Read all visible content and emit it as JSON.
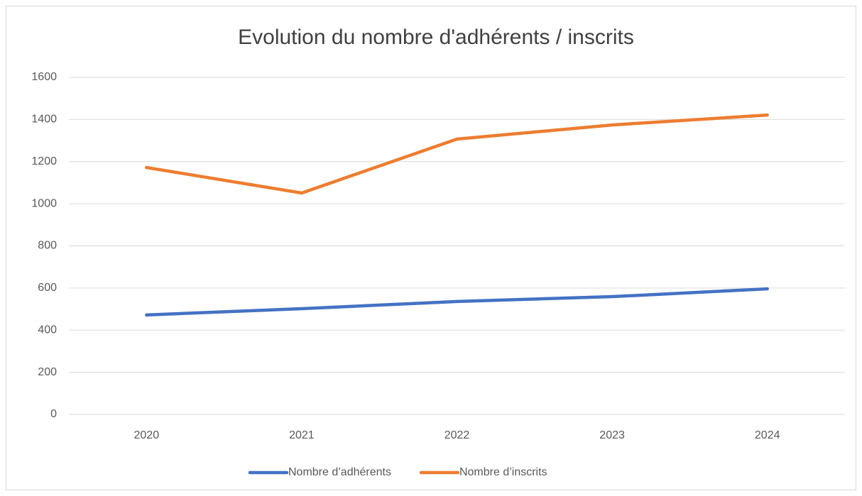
{
  "chart_data": {
    "type": "line",
    "title": "Evolution du nombre d'adhérents / inscrits",
    "categories": [
      "2020",
      "2021",
      "2022",
      "2023",
      "2024"
    ],
    "series": [
      {
        "name": "Nombre d’adhérents",
        "color": "#4472c4",
        "values": [
          472,
          502,
          536,
          559,
          596
        ]
      },
      {
        "name": "Nombre d’inscrits",
        "color": "#ed7d31",
        "values": [
          1172,
          1051,
          1307,
          1374,
          1421
        ]
      }
    ],
    "ylim": [
      0,
      1600
    ],
    "yticks": [
      0,
      200,
      400,
      600,
      800,
      1000,
      1200,
      1400,
      1600
    ],
    "grid": true,
    "legend": "bottom"
  }
}
